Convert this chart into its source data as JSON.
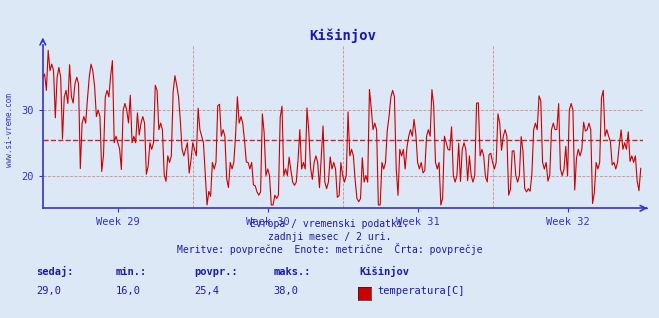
{
  "title": "Kišinjov",
  "subtitle1": "Evropa / vremenski podatki.",
  "subtitle2": "zadnji mesec / 2 uri.",
  "subtitle3": "Meritve: povprečne  Enote: metrične  Črta: povprečje",
  "legend_label": "temperatura[C]",
  "legend_place": "Kišinjov",
  "stat_labels": [
    "sedaj:",
    "min.:",
    "povpr.:",
    "maks.:"
  ],
  "stat_values": [
    "29,0",
    "16,0",
    "25,4",
    "38,0"
  ],
  "week_labels": [
    "Week 29",
    "Week 30",
    "Week 31",
    "Week 32"
  ],
  "ymin": 15,
  "ymax": 40,
  "yticks": [
    20,
    30
  ],
  "avg_value": 25.4,
  "bg_color": "#dce8f5",
  "plot_bg_color": "#dce8f5",
  "line_color": "#cc0000",
  "avg_line_color": "#cc0000",
  "grid_color": "#cc6666",
  "axis_color": "#3333cc",
  "text_color": "#1a1aaa",
  "watermark": "www.si-vreme.com"
}
